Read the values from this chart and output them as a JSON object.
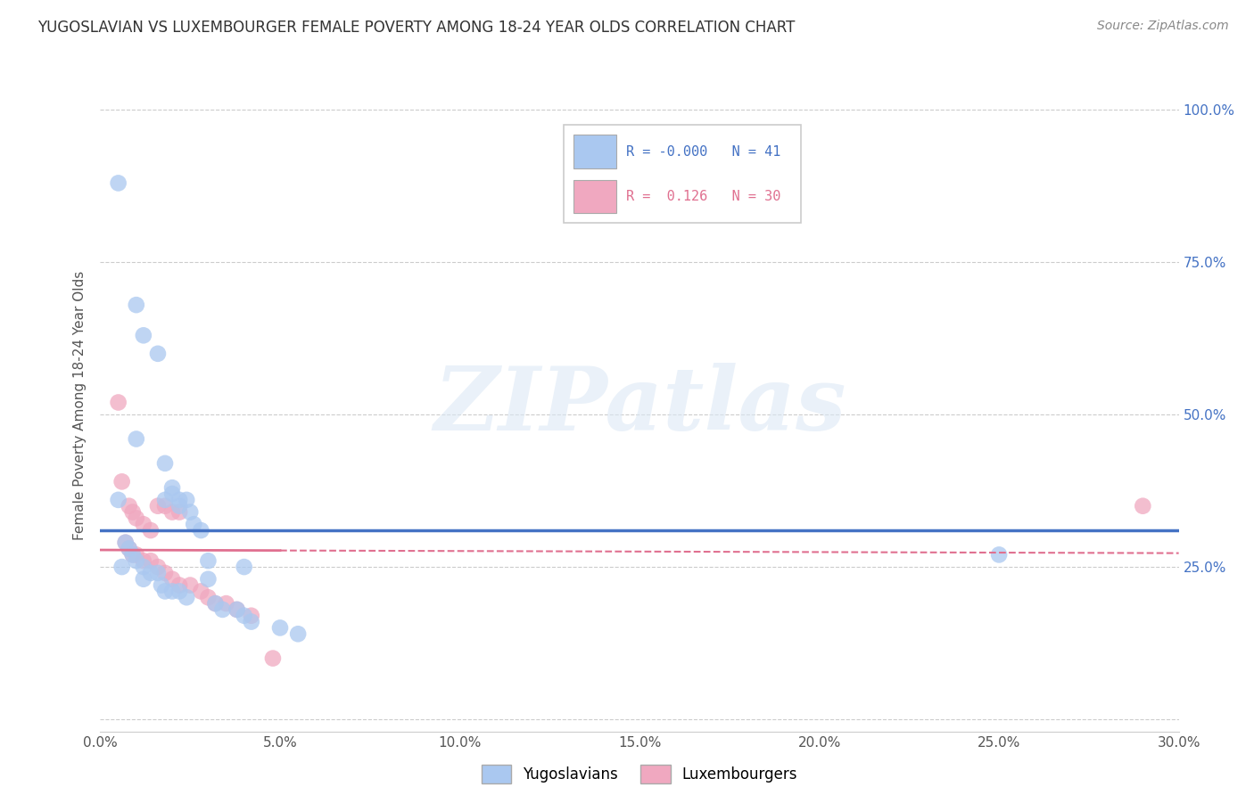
{
  "title": "YUGOSLAVIAN VS LUXEMBOURGER FEMALE POVERTY AMONG 18-24 YEAR OLDS CORRELATION CHART",
  "source": "Source: ZipAtlas.com",
  "ylabel": "Female Poverty Among 18-24 Year Olds",
  "yticks": [
    0.0,
    0.25,
    0.5,
    0.75,
    1.0
  ],
  "ytick_labels": [
    "",
    "25.0%",
    "50.0%",
    "75.0%",
    "100.0%"
  ],
  "xlim": [
    0.0,
    0.3
  ],
  "ylim": [
    -0.02,
    1.05
  ],
  "yug_color": "#aac8f0",
  "lux_color": "#f0a8c0",
  "yug_line_color": "#4472c4",
  "lux_line_color": "#e07090",
  "legend_yug_label": "Yugoslavians",
  "legend_lux_label": "Luxembourgers",
  "R_yug": "-0.000",
  "N_yug": "41",
  "R_lux": "0.126",
  "N_lux": "30",
  "watermark": "ZIPatlas",
  "yug_data": [
    [
      0.005,
      0.88
    ],
    [
      0.01,
      0.68
    ],
    [
      0.012,
      0.63
    ],
    [
      0.016,
      0.6
    ],
    [
      0.01,
      0.46
    ],
    [
      0.018,
      0.42
    ],
    [
      0.02,
      0.38
    ],
    [
      0.02,
      0.37
    ],
    [
      0.005,
      0.36
    ],
    [
      0.022,
      0.36
    ],
    [
      0.024,
      0.36
    ],
    [
      0.018,
      0.36
    ],
    [
      0.022,
      0.35
    ],
    [
      0.025,
      0.34
    ],
    [
      0.026,
      0.32
    ],
    [
      0.028,
      0.31
    ],
    [
      0.007,
      0.29
    ],
    [
      0.008,
      0.28
    ],
    [
      0.009,
      0.27
    ],
    [
      0.01,
      0.26
    ],
    [
      0.03,
      0.26
    ],
    [
      0.04,
      0.25
    ],
    [
      0.006,
      0.25
    ],
    [
      0.012,
      0.25
    ],
    [
      0.014,
      0.24
    ],
    [
      0.016,
      0.24
    ],
    [
      0.03,
      0.23
    ],
    [
      0.012,
      0.23
    ],
    [
      0.017,
      0.22
    ],
    [
      0.018,
      0.21
    ],
    [
      0.02,
      0.21
    ],
    [
      0.022,
      0.21
    ],
    [
      0.024,
      0.2
    ],
    [
      0.032,
      0.19
    ],
    [
      0.034,
      0.18
    ],
    [
      0.038,
      0.18
    ],
    [
      0.04,
      0.17
    ],
    [
      0.042,
      0.16
    ],
    [
      0.05,
      0.15
    ],
    [
      0.055,
      0.14
    ],
    [
      0.25,
      0.27
    ]
  ],
  "lux_data": [
    [
      0.006,
      0.39
    ],
    [
      0.008,
      0.35
    ],
    [
      0.009,
      0.34
    ],
    [
      0.01,
      0.33
    ],
    [
      0.012,
      0.32
    ],
    [
      0.014,
      0.31
    ],
    [
      0.016,
      0.35
    ],
    [
      0.018,
      0.35
    ],
    [
      0.02,
      0.34
    ],
    [
      0.022,
      0.34
    ],
    [
      0.007,
      0.29
    ],
    [
      0.008,
      0.28
    ],
    [
      0.009,
      0.27
    ],
    [
      0.01,
      0.27
    ],
    [
      0.012,
      0.26
    ],
    [
      0.014,
      0.26
    ],
    [
      0.016,
      0.25
    ],
    [
      0.018,
      0.24
    ],
    [
      0.02,
      0.23
    ],
    [
      0.022,
      0.22
    ],
    [
      0.005,
      0.52
    ],
    [
      0.025,
      0.22
    ],
    [
      0.028,
      0.21
    ],
    [
      0.03,
      0.2
    ],
    [
      0.032,
      0.19
    ],
    [
      0.035,
      0.19
    ],
    [
      0.038,
      0.18
    ],
    [
      0.042,
      0.17
    ],
    [
      0.048,
      0.1
    ],
    [
      0.29,
      0.35
    ]
  ]
}
